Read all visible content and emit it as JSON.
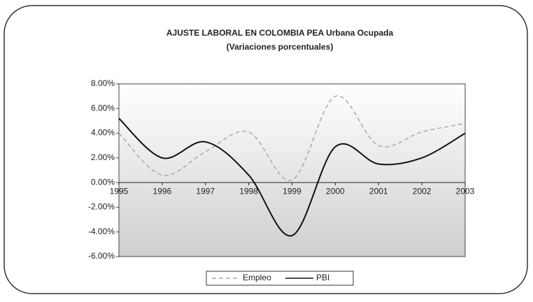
{
  "chart_data": {
    "type": "line",
    "title": "AJUSTE LABORAL EN COLOMBIA PEA Urbana Ocupada",
    "subtitle": "(Variaciones porcentuales)",
    "x": [
      1995,
      1996,
      1997,
      1998,
      1999,
      2000,
      2001,
      2002,
      2003
    ],
    "xlim": [
      1995,
      2003
    ],
    "series": [
      {
        "name": "Empleo",
        "color": "#aaaaaa",
        "dashed": true,
        "values": [
          4.0,
          0.6,
          2.5,
          4.1,
          0.2,
          7.0,
          3.0,
          4.1,
          4.8
        ]
      },
      {
        "name": "PBI",
        "color": "#111111",
        "dashed": false,
        "values": [
          5.2,
          2.0,
          3.3,
          0.6,
          -4.3,
          2.9,
          1.5,
          2.0,
          4.0
        ]
      }
    ],
    "ylim": [
      -6,
      8
    ],
    "yticks": [
      {
        "value": -6,
        "label": "-6.00%"
      },
      {
        "value": -4,
        "label": "-4.00%"
      },
      {
        "value": -2,
        "label": "-2.00%"
      },
      {
        "value": 0,
        "label": "0.00%"
      },
      {
        "value": 2,
        "label": "2.00%"
      },
      {
        "value": 4,
        "label": "4.00%"
      },
      {
        "value": 6,
        "label": "6.00%"
      },
      {
        "value": 8,
        "label": "8.00%"
      }
    ],
    "legend": "bottom"
  }
}
